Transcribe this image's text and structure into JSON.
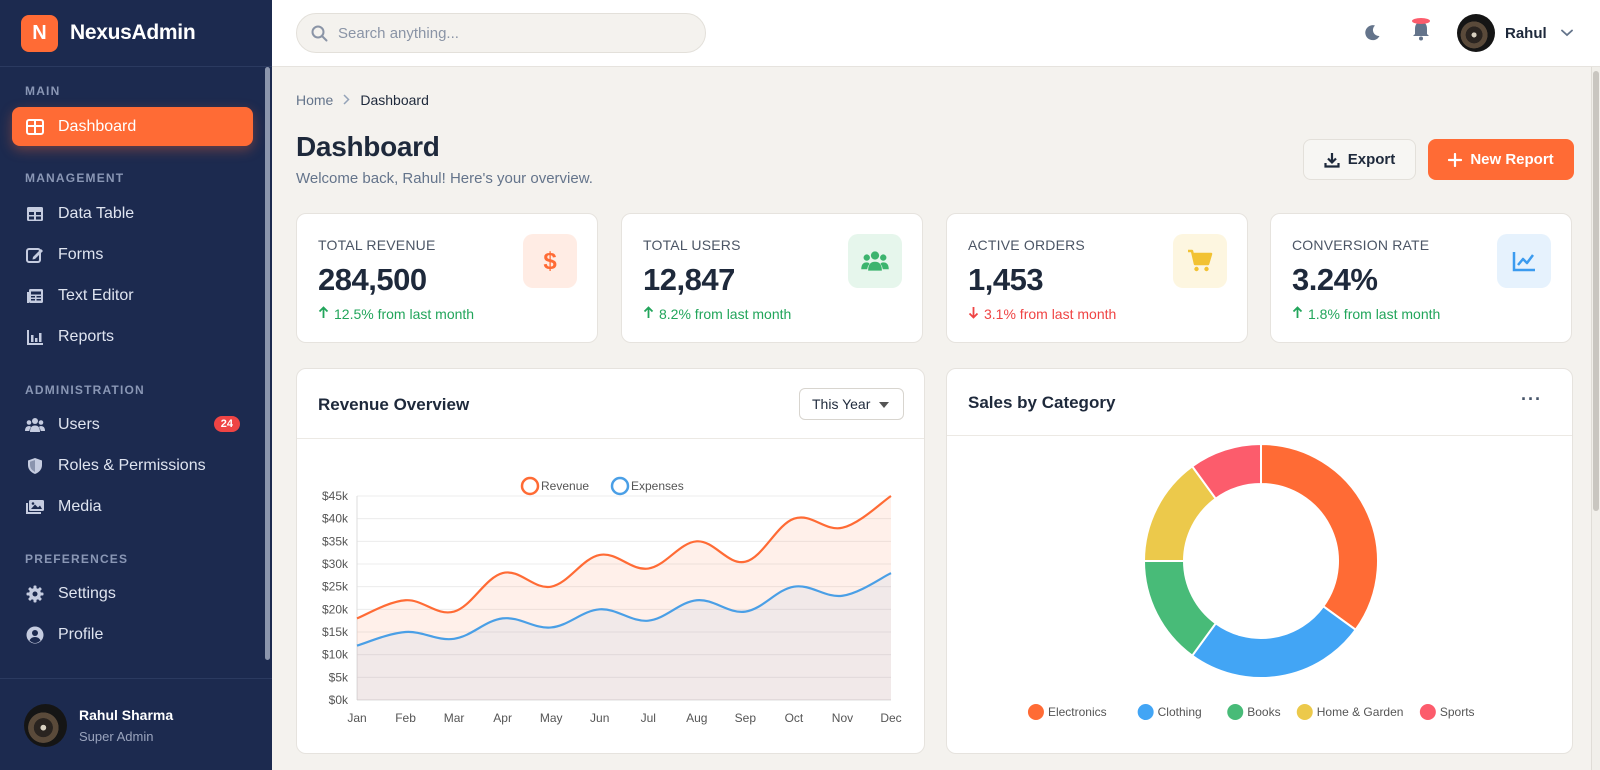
{
  "brand": {
    "letter": "N",
    "name": "NexusAdmin"
  },
  "sidebar": {
    "sections": [
      "MAIN",
      "MANAGEMENT",
      "ADMINISTRATION",
      "PREFERENCES"
    ],
    "items": [
      {
        "label": "Dashboard",
        "icon": "dashboard-icon"
      },
      {
        "label": "Data Table",
        "icon": "table-icon"
      },
      {
        "label": "Forms",
        "icon": "edit-icon"
      },
      {
        "label": "Text Editor",
        "icon": "newspaper-icon"
      },
      {
        "label": "Reports",
        "icon": "bar-chart-icon"
      },
      {
        "label": "Users",
        "icon": "users-icon",
        "badge": "24"
      },
      {
        "label": "Roles & Permissions",
        "icon": "shield-icon"
      },
      {
        "label": "Media",
        "icon": "images-icon"
      },
      {
        "label": "Settings",
        "icon": "gear-icon"
      },
      {
        "label": "Profile",
        "icon": "user-circle-icon"
      }
    ],
    "user": {
      "name": "Rahul Sharma",
      "role": "Super Admin"
    }
  },
  "topbar": {
    "search_placeholder": "Search anything...",
    "user_name": "Rahul"
  },
  "breadcrumb": {
    "home": "Home",
    "current": "Dashboard"
  },
  "header": {
    "title": "Dashboard",
    "subtitle": "Welcome back, Rahul! Here's your overview.",
    "export_label": "Export",
    "new_report_label": "New Report"
  },
  "stats": [
    {
      "label": "TOTAL REVENUE",
      "value": "284,500",
      "change": "12.5% from last month",
      "direction": "up",
      "icon": "dollar-icon",
      "color": "#ff6b35",
      "bg": "#ffece4"
    },
    {
      "label": "TOTAL USERS",
      "value": "12,847",
      "change": "8.2% from last month",
      "direction": "up",
      "icon": "users-icon",
      "color": "#3cb46e",
      "bg": "#e6f6ec"
    },
    {
      "label": "ACTIVE ORDERS",
      "value": "1,453",
      "change": "3.1% from last month",
      "direction": "down",
      "icon": "cart-icon",
      "color": "#f2c233",
      "bg": "#fdf6e0"
    },
    {
      "label": "CONVERSION RATE",
      "value": "3.24%",
      "change": "1.8% from last month",
      "direction": "up",
      "icon": "line-chart-icon",
      "color": "#3b9bef",
      "bg": "#e6f2fd"
    }
  ],
  "revenue_panel": {
    "title": "Revenue Overview",
    "range": "This Year"
  },
  "category_panel": {
    "title": "Sales by Category",
    "more": "···"
  },
  "colors": {
    "accent": "#ff6b35",
    "sidebar": "#1c2a4f",
    "up": "#22a55b",
    "down": "#ef4444"
  },
  "chart_data": [
    {
      "type": "line",
      "categories": [
        "Jan",
        "Feb",
        "Mar",
        "Apr",
        "May",
        "Jun",
        "Jul",
        "Aug",
        "Sep",
        "Oct",
        "Nov",
        "Dec"
      ],
      "series": [
        {
          "name": "Revenue",
          "color": "#ff6b35",
          "values": [
            18000,
            22000,
            19500,
            28000,
            25000,
            32000,
            29000,
            35000,
            30500,
            40000,
            38000,
            45000
          ]
        },
        {
          "name": "Expenses",
          "color": "#4a9fe6",
          "values": [
            12000,
            15000,
            13500,
            18000,
            16000,
            20000,
            17500,
            22000,
            19500,
            25000,
            23000,
            28000
          ]
        }
      ],
      "yticks": [
        "$0k",
        "$5k",
        "$10k",
        "$15k",
        "$20k",
        "$25k",
        "$30k",
        "$35k",
        "$40k",
        "$45k"
      ],
      "ylim": [
        0,
        45000
      ],
      "legend": "top-center",
      "grid": true
    },
    {
      "type": "pie",
      "donut": true,
      "labels": [
        "Electronics",
        "Clothing",
        "Books",
        "Home & Garden",
        "Sports"
      ],
      "values": [
        35,
        25,
        15,
        15,
        10
      ],
      "colors": [
        "#ff6b35",
        "#42a5f5",
        "#48bb78",
        "#ecc94b",
        "#fc5c6c"
      ],
      "legend": "bottom"
    }
  ]
}
